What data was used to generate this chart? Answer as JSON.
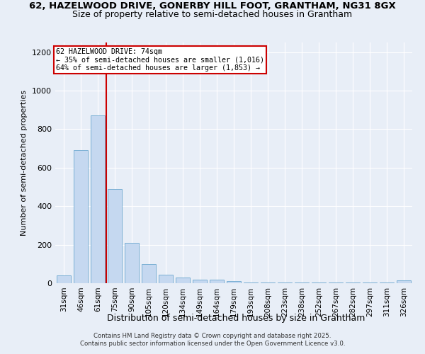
{
  "title1": "62, HAZELWOOD DRIVE, GONERBY HILL FOOT, GRANTHAM, NG31 8GX",
  "title2": "Size of property relative to semi-detached houses in Grantham",
  "xlabel": "Distribution of semi-detached houses by size in Grantham",
  "ylabel": "Number of semi-detached properties",
  "categories": [
    "31sqm",
    "46sqm",
    "61sqm",
    "75sqm",
    "90sqm",
    "105sqm",
    "120sqm",
    "134sqm",
    "149sqm",
    "164sqm",
    "179sqm",
    "193sqm",
    "208sqm",
    "223sqm",
    "238sqm",
    "252sqm",
    "267sqm",
    "282sqm",
    "297sqm",
    "311sqm",
    "326sqm"
  ],
  "values": [
    40,
    690,
    870,
    490,
    210,
    100,
    45,
    30,
    20,
    20,
    10,
    5,
    5,
    3,
    3,
    2,
    2,
    2,
    2,
    2,
    15
  ],
  "bar_color": "#c5d8f0",
  "bar_edge_color": "#7aafd4",
  "vline_color": "#cc0000",
  "vline_pos": 2.5,
  "annotation_title": "62 HAZELWOOD DRIVE: 74sqm",
  "annotation_line1": "← 35% of semi-detached houses are smaller (1,016)",
  "annotation_line2": "64% of semi-detached houses are larger (1,853) →",
  "annotation_box_color": "#ffffff",
  "annotation_box_edge": "#cc0000",
  "footnote1": "Contains HM Land Registry data © Crown copyright and database right 2025.",
  "footnote2": "Contains public sector information licensed under the Open Government Licence v3.0.",
  "ylim": [
    0,
    1250
  ],
  "yticks": [
    0,
    200,
    400,
    600,
    800,
    1000,
    1200
  ],
  "background_color": "#e8eef7",
  "title_fontsize": 9.5,
  "subtitle_fontsize": 9
}
